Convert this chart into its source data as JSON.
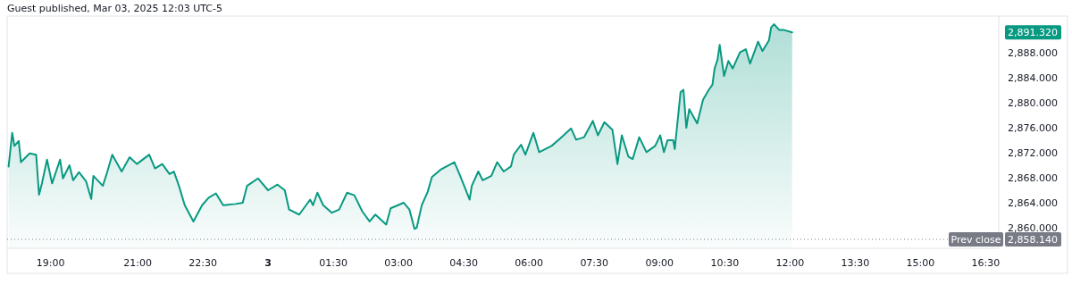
{
  "chart_data": {
    "type": "area",
    "title": "Guest published, Mar 03, 2025 12:03 UTC-5",
    "x": [
      "2025-03-02T18:02",
      "2025-03-02T18:07",
      "2025-03-02T18:10",
      "2025-03-02T18:16",
      "2025-03-02T18:19",
      "2025-03-02T18:31",
      "2025-03-02T18:40",
      "2025-03-02T18:44",
      "2025-03-02T18:48",
      "2025-03-02T18:55",
      "2025-03-02T19:02",
      "2025-03-02T19:13",
      "2025-03-02T19:17",
      "2025-03-02T19:26",
      "2025-03-02T19:31",
      "2025-03-02T19:39",
      "2025-03-02T19:49",
      "2025-03-02T19:56",
      "2025-03-02T19:59",
      "2025-03-02T20:12",
      "2025-03-02T20:18",
      "2025-03-02T20:25",
      "2025-03-02T20:38",
      "2025-03-02T20:49",
      "2025-03-02T20:59",
      "2025-03-02T21:16",
      "2025-03-02T21:24",
      "2025-03-02T21:34",
      "2025-03-02T21:44",
      "2025-03-02T21:50",
      "2025-03-02T21:57",
      "2025-03-02T22:05",
      "2025-03-02T22:17",
      "2025-03-02T22:29",
      "2025-03-02T22:38",
      "2025-03-02T22:48",
      "2025-03-02T22:58",
      "2025-03-02T23:15",
      "2025-03-02T23:25",
      "2025-03-02T23:31",
      "2025-03-02T23:46",
      "2025-03-03T00:00",
      "2025-03-03T00:13",
      "2025-03-03T00:23",
      "2025-03-03T00:29",
      "2025-03-03T00:43",
      "2025-03-03T00:58",
      "2025-03-03T01:02",
      "2025-03-03T01:08",
      "2025-03-03T01:16",
      "2025-03-03T01:28",
      "2025-03-03T01:38",
      "2025-03-03T01:49",
      "2025-03-03T01:59",
      "2025-03-03T02:10",
      "2025-03-03T02:20",
      "2025-03-03T02:28",
      "2025-03-03T02:43",
      "2025-03-03T02:49",
      "2025-03-03T03:07",
      "2025-03-03T03:15",
      "2025-03-03T03:22",
      "2025-03-03T03:25",
      "2025-03-03T03:32",
      "2025-03-03T03:40",
      "2025-03-03T03:46",
      "2025-03-03T03:58",
      "2025-03-03T04:17",
      "2025-03-03T04:25",
      "2025-03-03T04:38",
      "2025-03-03T04:41",
      "2025-03-03T04:50",
      "2025-03-03T04:56",
      "2025-03-03T05:08",
      "2025-03-03T05:16",
      "2025-03-03T05:25",
      "2025-03-03T05:35",
      "2025-03-03T05:39",
      "2025-03-03T05:49",
      "2025-03-03T05:55",
      "2025-03-03T06:06",
      "2025-03-03T06:14",
      "2025-03-03T06:31",
      "2025-03-03T06:43",
      "2025-03-03T06:58",
      "2025-03-03T07:05",
      "2025-03-03T07:16",
      "2025-03-03T07:28",
      "2025-03-03T07:35",
      "2025-03-03T07:44",
      "2025-03-03T07:55",
      "2025-03-03T08:02",
      "2025-03-03T08:08",
      "2025-03-03T08:17",
      "2025-03-03T08:23",
      "2025-03-03T08:32",
      "2025-03-03T08:42",
      "2025-03-03T08:54",
      "2025-03-03T09:01",
      "2025-03-03T09:06",
      "2025-03-03T09:11",
      "2025-03-03T09:19",
      "2025-03-03T09:21",
      "2025-03-03T09:25",
      "2025-03-03T09:29",
      "2025-03-03T09:33",
      "2025-03-03T09:37",
      "2025-03-03T09:41",
      "2025-03-03T09:52",
      "2025-03-03T10:00",
      "2025-03-03T10:08",
      "2025-03-03T10:13",
      "2025-03-03T10:16",
      "2025-03-03T10:20",
      "2025-03-03T10:23",
      "2025-03-03T10:29",
      "2025-03-03T10:35",
      "2025-03-03T10:41",
      "2025-03-03T10:51",
      "2025-03-03T10:59",
      "2025-03-03T11:05",
      "2025-03-03T11:16",
      "2025-03-03T11:22",
      "2025-03-03T11:31",
      "2025-03-03T11:34",
      "2025-03-03T11:38",
      "2025-03-03T11:45",
      "2025-03-03T11:51",
      "2025-03-03T12:03"
    ],
    "series": [
      {
        "color": "#089981",
        "values": [
          2869.8,
          2875.2,
          2873.1,
          2873.9,
          2870.5,
          2871.9,
          2871.7,
          2865.3,
          2867.1,
          2870.9,
          2867.1,
          2870.9,
          2867.9,
          2870,
          2867.6,
          2868.9,
          2867.4,
          2864.6,
          2868.3,
          2866.7,
          2868.9,
          2871.7,
          2869,
          2871.3,
          2870.2,
          2871.7,
          2869.5,
          2870.2,
          2868.6,
          2869,
          2866.7,
          2863.6,
          2861,
          2863.6,
          2864.8,
          2865.5,
          2863.6,
          2863.8,
          2864,
          2866.7,
          2867.9,
          2866,
          2866.9,
          2866,
          2862.9,
          2862.1,
          2864.5,
          2863.6,
          2865.6,
          2863.6,
          2862.4,
          2862.9,
          2865.6,
          2865.2,
          2862.6,
          2861,
          2862.1,
          2860.5,
          2863.1,
          2864,
          2862.9,
          2859.8,
          2860,
          2863.6,
          2865.7,
          2868.1,
          2869.3,
          2870.5,
          2868.3,
          2864.5,
          2866.7,
          2869,
          2867.6,
          2868.3,
          2870.5,
          2869,
          2869.8,
          2871.7,
          2873.3,
          2871.7,
          2875.2,
          2872.1,
          2873.1,
          2874.3,
          2875.9,
          2874.1,
          2874.5,
          2877.1,
          2874.8,
          2876.9,
          2875.7,
          2870.2,
          2874.8,
          2871.4,
          2871,
          2874.5,
          2872.1,
          2873.1,
          2874.8,
          2872.1,
          2874,
          2874,
          2872.6,
          2877.1,
          2881.7,
          2882.1,
          2876,
          2879,
          2876.7,
          2880.5,
          2882.1,
          2882.9,
          2885.5,
          2886.9,
          2889.3,
          2884.3,
          2886.7,
          2885.5,
          2888.1,
          2888.6,
          2886.3,
          2889.8,
          2888.3,
          2890,
          2892.1,
          2892.6,
          2891.7,
          2891.7,
          2891.3
        ]
      }
    ],
    "xlim": [
      "2025-03-02T18:00",
      "2025-03-03T16:48"
    ],
    "xticks": [
      {
        "value": "2025-03-02T19:00",
        "label": "19:00"
      },
      {
        "value": "2025-03-02T21:00",
        "label": "21:00"
      },
      {
        "value": "2025-03-02T22:30",
        "label": "22:30"
      },
      {
        "value": "2025-03-03T00:00",
        "label": "3"
      },
      {
        "value": "2025-03-03T01:30",
        "label": "01:30"
      },
      {
        "value": "2025-03-03T03:00",
        "label": "03:00"
      },
      {
        "value": "2025-03-03T04:30",
        "label": "04:30"
      },
      {
        "value": "2025-03-03T06:00",
        "label": "06:00"
      },
      {
        "value": "2025-03-03T07:30",
        "label": "07:30"
      },
      {
        "value": "2025-03-03T09:00",
        "label": "09:00"
      },
      {
        "value": "2025-03-03T10:30",
        "label": "10:30"
      },
      {
        "value": "2025-03-03T12:00",
        "label": "12:00"
      },
      {
        "value": "2025-03-03T13:30",
        "label": "13:30"
      },
      {
        "value": "2025-03-03T15:00",
        "label": "15:00"
      },
      {
        "value": "2025-03-03T16:30",
        "label": "16:30"
      }
    ],
    "ylim": [
      2856.7,
      2893.9
    ],
    "yticks": [
      {
        "value": 2860,
        "label": "2,860.000"
      },
      {
        "value": 2864,
        "label": "2,864.000"
      },
      {
        "value": 2868,
        "label": "2,868.000"
      },
      {
        "value": 2872,
        "label": "2,872.000"
      },
      {
        "value": 2876,
        "label": "2,876.000"
      },
      {
        "value": 2880,
        "label": "2,880.000"
      },
      {
        "value": 2884,
        "label": "2,884.000"
      },
      {
        "value": 2888,
        "label": "2,888.000"
      }
    ],
    "ref_lines": [
      {
        "axis": "y",
        "value": 2858.14,
        "label": "Prev close",
        "color": "#787b86",
        "line_style": "dotted"
      }
    ],
    "annotations": [
      "2,891.320",
      "2,858.140"
    ]
  }
}
